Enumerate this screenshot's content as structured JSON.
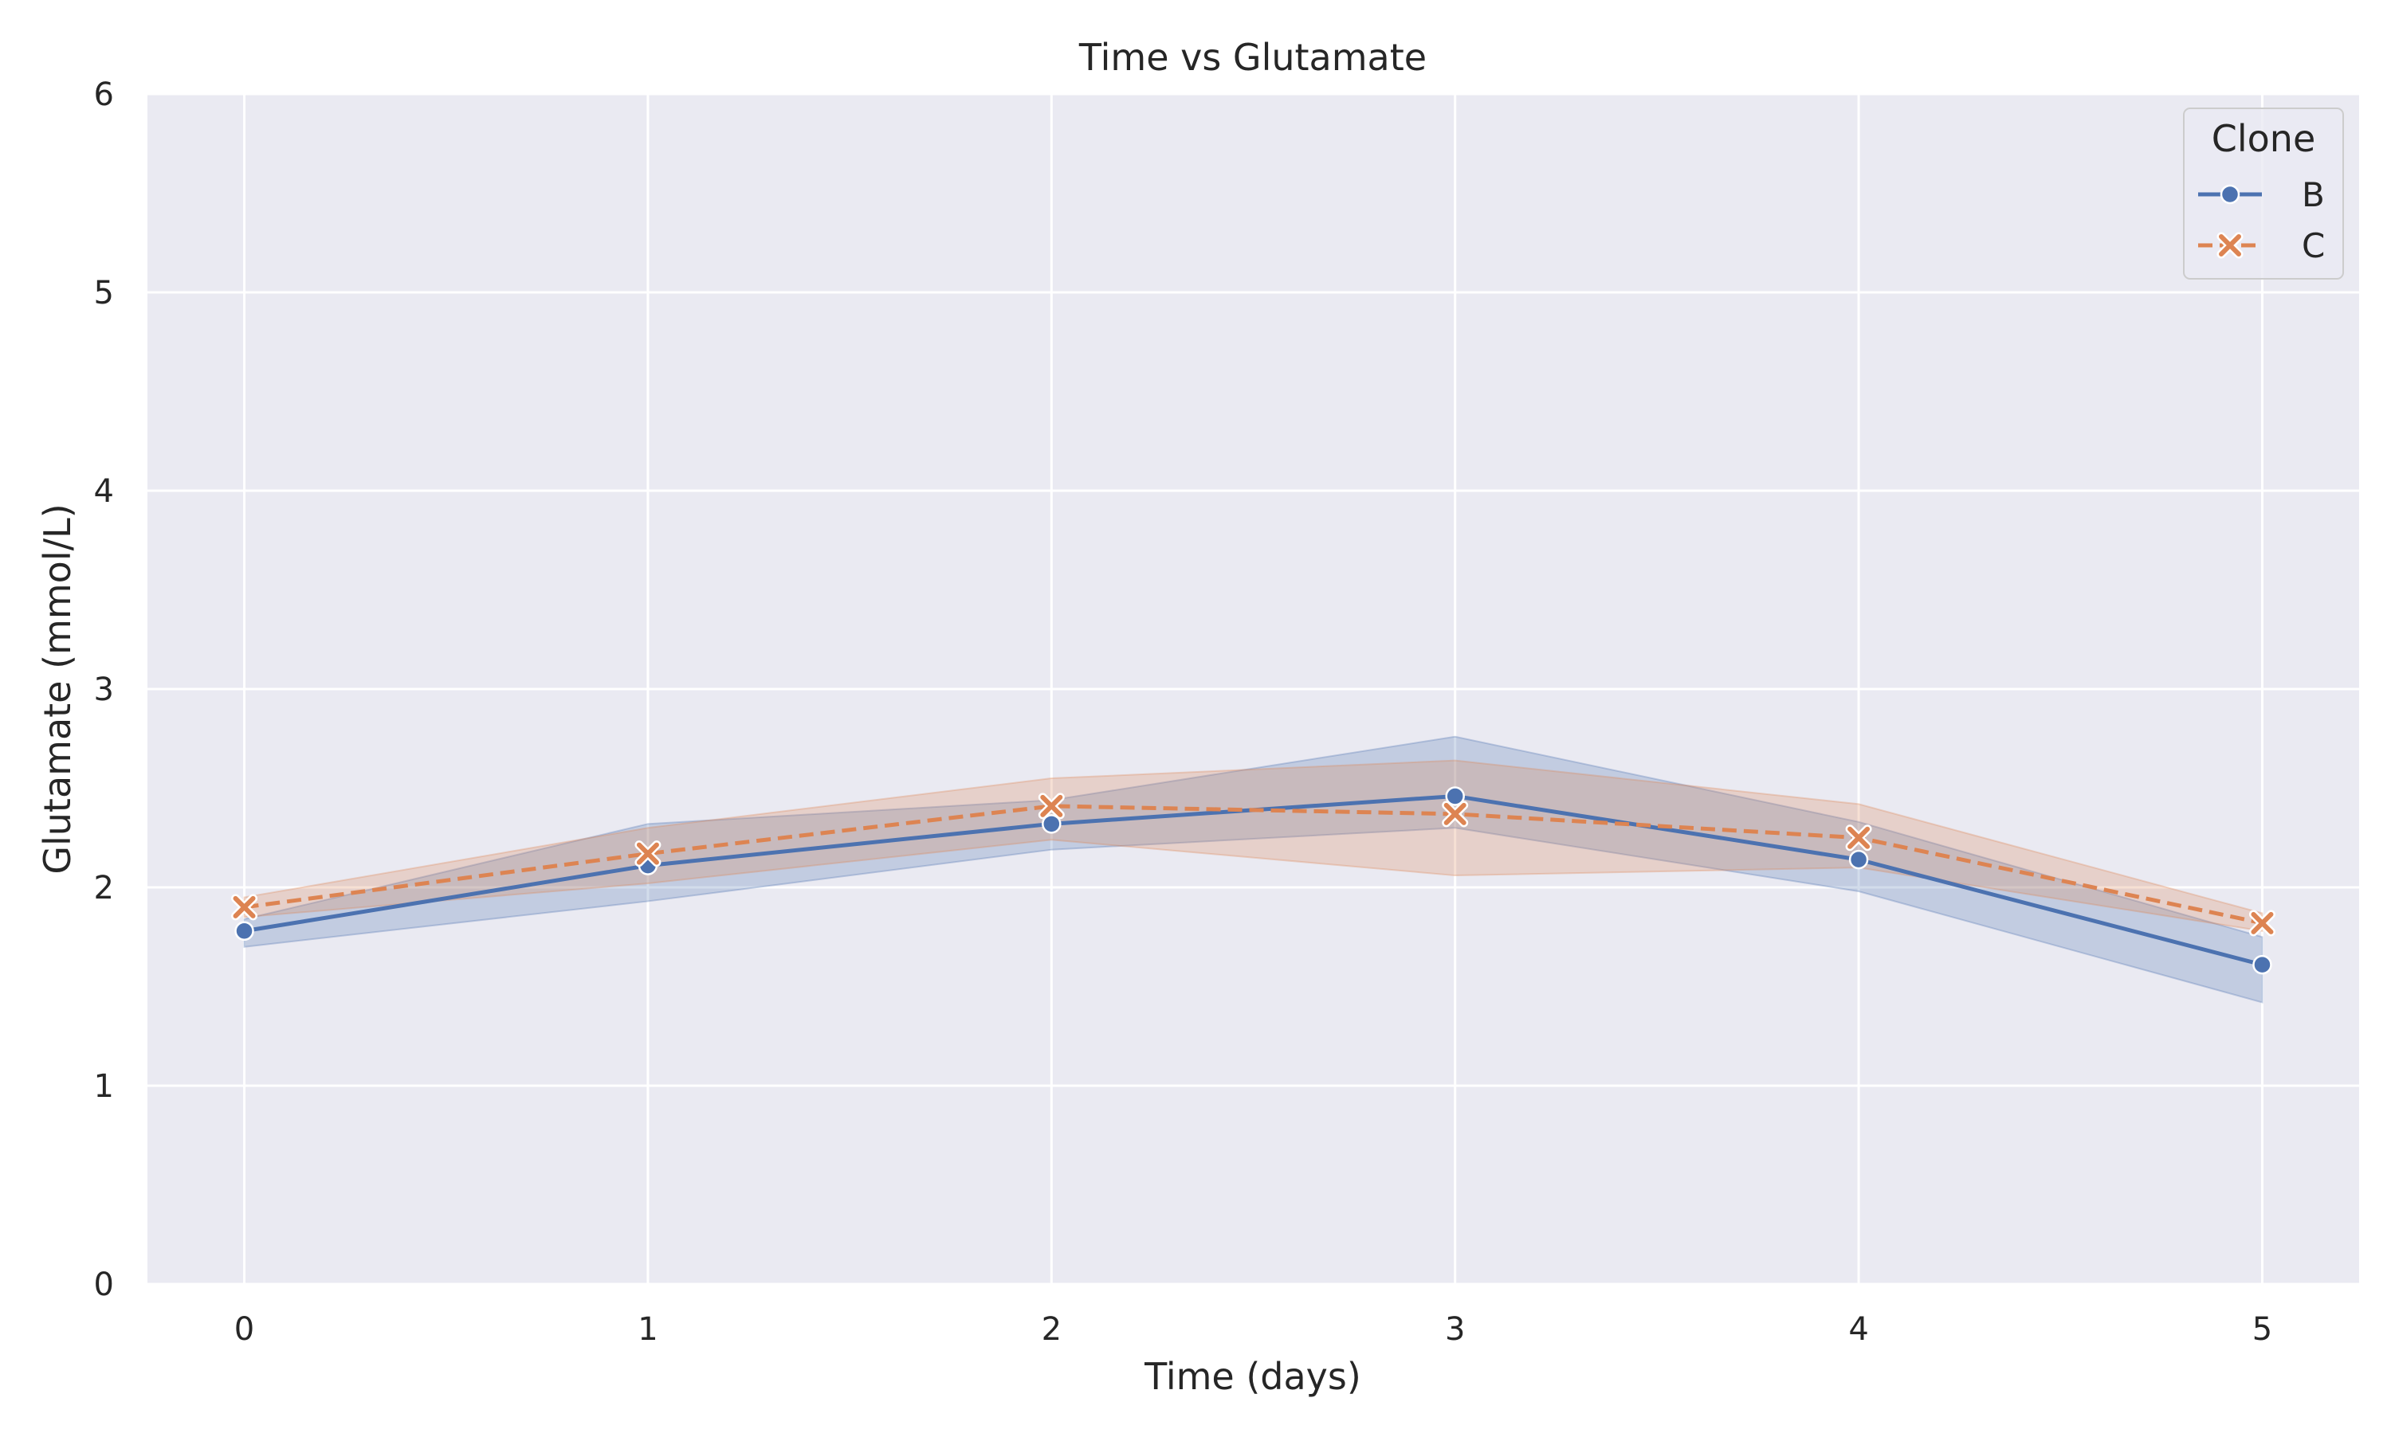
{
  "chart_data": {
    "type": "line",
    "title": "Time vs Glutamate",
    "xlabel": "Time (days)",
    "ylabel": "Glutamate (mmol/L)",
    "x": [
      0,
      1,
      2,
      3,
      4,
      5
    ],
    "xlim": [
      -0.24,
      5.24
    ],
    "ylim": [
      0,
      6
    ],
    "xticks": [
      0,
      1,
      2,
      3,
      4,
      5
    ],
    "yticks": [
      0,
      1,
      2,
      3,
      4,
      5,
      6
    ],
    "grid": true,
    "legend": {
      "title": "Clone",
      "placement": "top-right"
    },
    "series": [
      {
        "name": "B",
        "color": "#4c72b0",
        "marker": "circle",
        "linestyle": "solid",
        "values": [
          1.78,
          2.11,
          2.32,
          2.46,
          2.14,
          1.61
        ],
        "ci_lower": [
          1.7,
          1.93,
          2.19,
          2.3,
          1.98,
          1.42
        ],
        "ci_upper": [
          1.84,
          2.32,
          2.44,
          2.76,
          2.33,
          1.75
        ]
      },
      {
        "name": "C",
        "color": "#dd8452",
        "marker": "x",
        "linestyle": "dashed",
        "values": [
          1.9,
          2.17,
          2.41,
          2.37,
          2.25,
          1.82
        ],
        "ci_lower": [
          1.85,
          2.02,
          2.24,
          2.06,
          2.1,
          1.78
        ],
        "ci_upper": [
          1.95,
          2.3,
          2.55,
          2.64,
          2.42,
          1.87
        ]
      }
    ]
  }
}
